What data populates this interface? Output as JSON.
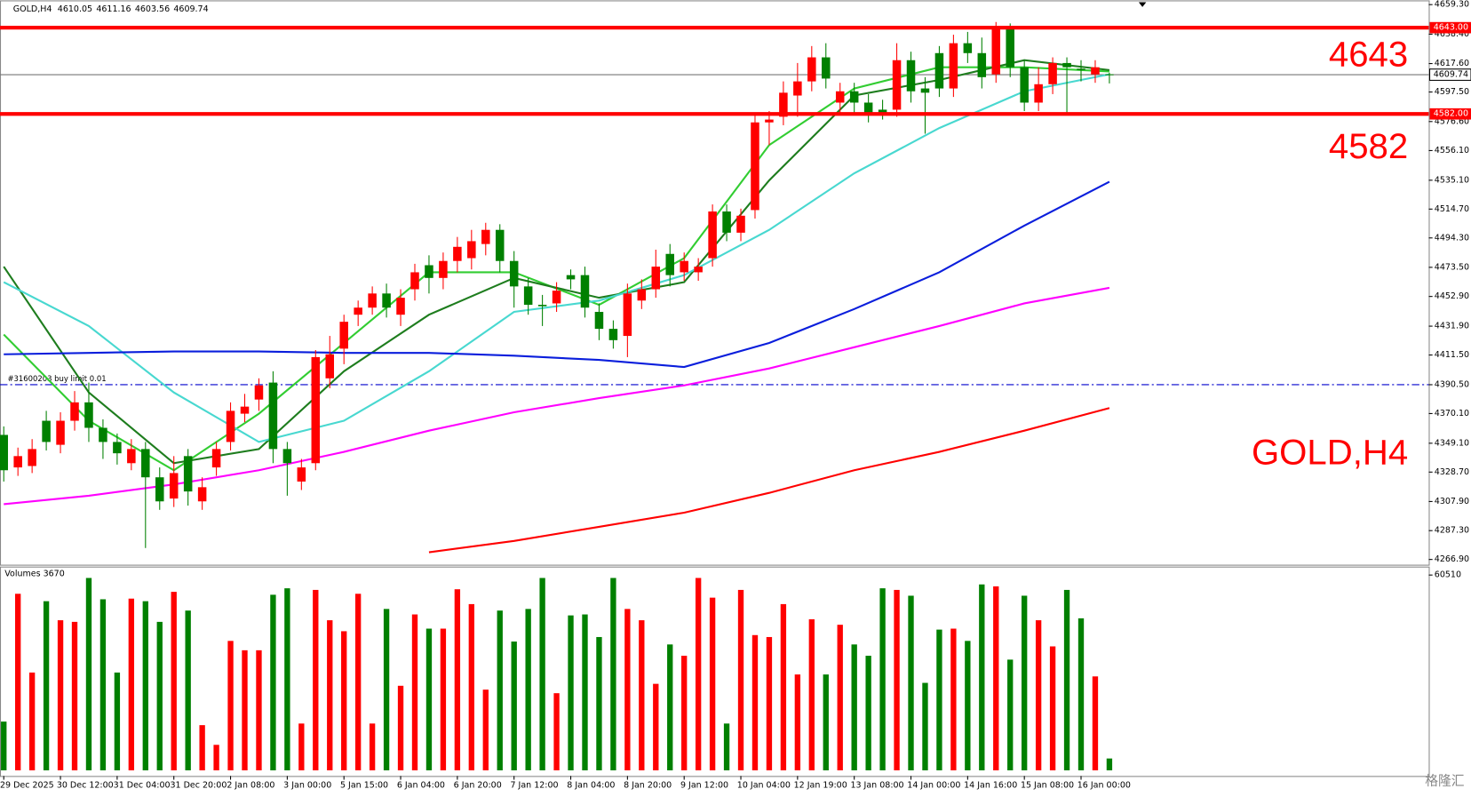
{
  "chart_data": {
    "type": "candlestick",
    "symbol": "GOLD,H4",
    "categories": [
      "29 Dec 2025",
      null,
      null,
      null,
      "30 Dec 12:00",
      null,
      null,
      null,
      "31 Dec 04:00",
      null,
      null,
      null,
      "31 Dec 20:00",
      null,
      null,
      null,
      "2 Jan 08:00",
      null,
      null,
      null,
      "3 Jan 00:00",
      null,
      null,
      null,
      "5 Jan 15:00",
      null,
      null,
      null,
      "6 Jan 04:00",
      null,
      null,
      null,
      "6 Jan 20:00",
      null,
      null,
      null,
      "7 Jan 12:00",
      null,
      null,
      null,
      "8 Jan 04:00",
      null,
      null,
      null,
      "8 Jan 20:00",
      null,
      null,
      null,
      "9 Jan 12:00",
      null,
      null,
      null,
      "10 Jan 04:00",
      null,
      null,
      null,
      "12 Jan 19:00",
      null,
      null,
      null,
      "13 Jan 08:00",
      null,
      null,
      null,
      "14 Jan 00:00",
      null,
      null,
      null,
      "14 Jan 16:00",
      null,
      null,
      null,
      "15 Jan 08:00",
      null,
      null,
      null,
      "16 Jan 00:00",
      null,
      null
    ],
    "open": [
      4355,
      4332,
      4333,
      4365,
      4348,
      4365,
      4378,
      4360,
      4350,
      4335,
      4345,
      4325,
      4310,
      4340,
      4308,
      4332,
      4350,
      4370,
      4380,
      4392,
      4345,
      4322,
      4335,
      4395,
      4416,
      4440,
      4445,
      4455,
      4440,
      4458,
      4475,
      4466,
      4478,
      4480,
      4490,
      4500,
      4478,
      4460,
      4447,
      4448,
      4468,
      4468,
      4442,
      4430,
      4425,
      4450,
      4458,
      4483,
      4470,
      4470,
      4480,
      4513,
      4498,
      4514,
      4576,
      4580,
      4595,
      4605,
      4622,
      4590,
      4598,
      4590,
      4585,
      4585,
      4620,
      4600,
      4625,
      4600,
      4632,
      4625,
      4610,
      4642,
      4615,
      4590,
      4603,
      4618,
      4614,
      4610,
      4610.05
    ],
    "high": [
      4361,
      4346,
      4352,
      4372,
      4371,
      4386,
      4392,
      4366,
      4356,
      4352,
      4350,
      4332,
      4340,
      4345,
      4325,
      4350,
      4378,
      4384,
      4395,
      4400,
      4350,
      4338,
      4415,
      4425,
      4440,
      4450,
      4460,
      4462,
      4458,
      4476,
      4482,
      4484,
      4495,
      4500,
      4505,
      4504,
      4485,
      4466,
      4454,
      4463,
      4472,
      4474,
      4448,
      4436,
      4462,
      4465,
      4486,
      4490,
      4484,
      4480,
      4518,
      4518,
      4515,
      4582,
      4584,
      4605,
      4618,
      4630,
      4632,
      4604,
      4604,
      4596,
      4592,
      4632,
      4626,
      4608,
      4630,
      4638,
      4640,
      4636,
      4647,
      4646,
      4620,
      4615,
      4622,
      4622,
      4620,
      4620,
      4611.16
    ],
    "low": [
      4322,
      4326,
      4328,
      4344,
      4342,
      4358,
      4350,
      4338,
      4334,
      4330,
      4275,
      4302,
      4304,
      4305,
      4302,
      4326,
      4344,
      4364,
      4372,
      4335,
      4312,
      4316,
      4330,
      4388,
      4405,
      4432,
      4440,
      4438,
      4432,
      4450,
      4455,
      4458,
      4470,
      4472,
      4482,
      4470,
      4445,
      4440,
      4432,
      4442,
      4458,
      4438,
      4422,
      4416,
      4410,
      4444,
      4452,
      4460,
      4464,
      4464,
      4474,
      4492,
      4492,
      4508,
      4560,
      4574,
      4580,
      4598,
      4600,
      4582,
      4582,
      4576,
      4578,
      4580,
      4590,
      4568,
      4594,
      4594,
      4618,
      4600,
      4604,
      4608,
      4584,
      4584,
      4596,
      4582,
      4605,
      4604,
      4603.56
    ],
    "close": [
      4330,
      4340,
      4345,
      4350,
      4365,
      4378,
      4360,
      4350,
      4342,
      4345,
      4325,
      4308,
      4328,
      4315,
      4318,
      4345,
      4372,
      4375,
      4390,
      4345,
      4335,
      4332,
      4410,
      4412,
      4435,
      4445,
      4455,
      4445,
      4452,
      4470,
      4466,
      4478,
      4488,
      4492,
      4500,
      4478,
      4460,
      4447,
      4446,
      4457,
      4465,
      4445,
      4430,
      4422,
      4455,
      4458,
      4474,
      4468,
      4478,
      4474,
      4513,
      4498,
      4510,
      4576,
      4578,
      4597,
      4605,
      4622,
      4607,
      4598,
      4590,
      4583,
      4582,
      4620,
      4598,
      4597,
      4600,
      4632,
      4625,
      4608,
      4643,
      4615,
      4590,
      4603,
      4618,
      4615,
      4613,
      4615,
      4609.74
    ],
    "up_color": "#ff0000",
    "down_color": "#008000",
    "ylim": [
      4263.2,
      4662.3
    ],
    "yticks": [
      {
        "value": 4659.3,
        "label": "4659.30"
      },
      {
        "value": 4638.4,
        "label": "4638.40"
      },
      {
        "value": 4617.6,
        "label": "4617.60"
      },
      {
        "value": 4597.5,
        "label": "4597.50"
      },
      {
        "value": 4576.6,
        "label": "4576.60"
      },
      {
        "value": 4556.1,
        "label": "4556.10"
      },
      {
        "value": 4535.1,
        "label": "4535.10"
      },
      {
        "value": 4514.7,
        "label": "4514.70"
      },
      {
        "value": 4494.3,
        "label": "4494.30"
      },
      {
        "value": 4473.5,
        "label": "4473.50"
      },
      {
        "value": 4452.9,
        "label": "4452.90"
      },
      {
        "value": 4431.9,
        "label": "4431.90"
      },
      {
        "value": 4411.5,
        "label": "4411.50"
      },
      {
        "value": 4390.5,
        "label": "4390.50"
      },
      {
        "value": 4370.1,
        "label": "4370.10"
      },
      {
        "value": 4349.1,
        "label": "4349.10"
      },
      {
        "value": 4328.7,
        "label": "4328.70"
      },
      {
        "value": 4307.9,
        "label": "4307.90"
      },
      {
        "value": 4287.3,
        "label": "4287.30"
      },
      {
        "value": 4266.9,
        "label": "4266.90"
      }
    ],
    "ma_x": [
      0,
      6,
      12,
      18,
      24,
      30,
      36,
      42,
      48,
      54,
      60,
      66,
      72,
      78
    ],
    "ma_series": [
      {
        "color": "#32cd32",
        "values": [
          4426,
          4365,
          4330,
          4370,
          4420,
          4470,
          4470,
          4447,
          4480,
          4560,
          4600,
          4615,
          4615,
          4612
        ]
      },
      {
        "color": "#1e7d1e",
        "values": [
          4474,
          4385,
          4335,
          4345,
          4400,
          4440,
          4466,
          4452,
          4463,
          4535,
          4595,
          4606,
          4620,
          4613
        ]
      },
      {
        "color": "#48d8d0",
        "values": [
          4463,
          4432,
          4385,
          4350,
          4365,
          4400,
          4442,
          4450,
          4468,
          4500,
          4540,
          4572,
          4598,
          4610
        ]
      },
      {
        "color": "#0a1edc",
        "values": [
          4412,
          4413,
          4414,
          4414,
          4413,
          4413,
          4411,
          4408,
          4403,
          4420,
          4444,
          4470,
          4503,
          4534
        ]
      },
      {
        "color": "#ff00ff",
        "values": [
          4306,
          4312,
          4320,
          4330,
          4343,
          4358,
          4371,
          4381,
          4390,
          4402,
          4417,
          4432,
          4448,
          4459
        ]
      },
      {
        "color": "#ff0000",
        "values": [
          null,
          null,
          null,
          null,
          null,
          4272,
          4280,
          4290,
          4300,
          4314,
          4330,
          4343,
          4358,
          4374
        ]
      }
    ],
    "levels": [
      {
        "value": 4643,
        "label": "4643.00",
        "annotation": "4643"
      },
      {
        "value": 4582,
        "label": "4582.00",
        "annotation": "4582"
      }
    ],
    "level_color": "#ff0000",
    "current_price": {
      "value": 4609.74,
      "label": "4609.74"
    },
    "order": {
      "value": 4390.5,
      "label": "#31600203 buy limit 0.01",
      "color": "#0000cd"
    },
    "volume_title": "Volumes 3670",
    "volumes": [
      15100,
      54700,
      30300,
      52400,
      46500,
      46000,
      59600,
      53000,
      30300,
      53200,
      52400,
      46000,
      55300,
      49500,
      14000,
      7900,
      40100,
      37200,
      37200,
      54400,
      56400,
      14500,
      55900,
      46500,
      43100,
      54700,
      14500,
      50000,
      26200,
      48300,
      43900,
      43900,
      56100,
      51500,
      25000,
      49500,
      39900,
      50000,
      59600,
      23900,
      48000,
      48300,
      41300,
      59600,
      50000,
      46500,
      26800,
      39000,
      35500,
      59600,
      53500,
      14500,
      55900,
      41900,
      41300,
      51500,
      29700,
      46800,
      29700,
      45100,
      39000,
      35500,
      56400,
      55900,
      54100,
      27100,
      43600,
      43900,
      40100,
      57600,
      57000,
      34300,
      54100,
      46500,
      38400,
      55900,
      47100,
      29100,
      3670
    ],
    "vol_ylim": [
      0,
      60510
    ],
    "vol_yticks": [
      60510
    ],
    "watermark": "格隆汇"
  }
}
